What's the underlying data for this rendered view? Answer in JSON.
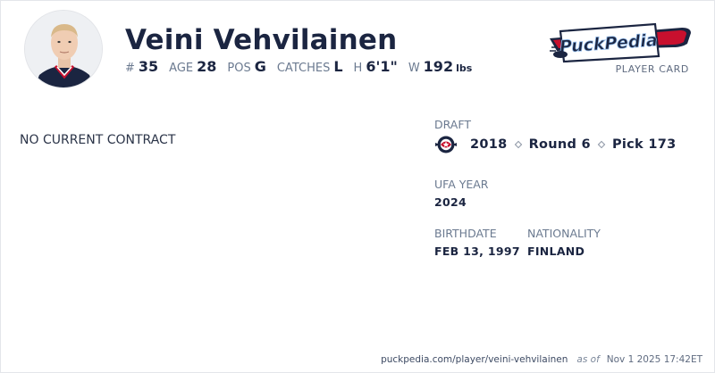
{
  "player": {
    "name": "Veini Vehvilainen",
    "stats": [
      {
        "label": "#",
        "value": "35"
      },
      {
        "label": "AGE",
        "value": "28"
      },
      {
        "label": "POS",
        "value": "G"
      },
      {
        "label": "CATCHES",
        "value": "L"
      },
      {
        "label": "H",
        "value": "6'1\""
      },
      {
        "label": "W",
        "value": "192",
        "unit": "lbs"
      }
    ]
  },
  "brand": {
    "logo_text": "PuckPedia",
    "caption": "PLAYER CARD",
    "colors": {
      "navy": "#1b2541",
      "red": "#c8102e",
      "light_blue": "#8fb8e8"
    }
  },
  "contract": {
    "status": "NO CURRENT CONTRACT"
  },
  "draft": {
    "label": "DRAFT",
    "team_icon": "columbus-blue-jackets-logo",
    "year": "2018",
    "round": "Round 6",
    "pick": "Pick 173"
  },
  "ufa": {
    "label": "UFA YEAR",
    "value": "2024"
  },
  "birthdate": {
    "label": "BIRTHDATE",
    "value": "FEB 13, 1997"
  },
  "nationality": {
    "label": "NATIONALITY",
    "value": "FINLAND"
  },
  "footer": {
    "url": "puckpedia.com/player/veini-vehvilainen",
    "as_of": "as of",
    "timestamp": "Nov 1 2025 17:42ET"
  }
}
